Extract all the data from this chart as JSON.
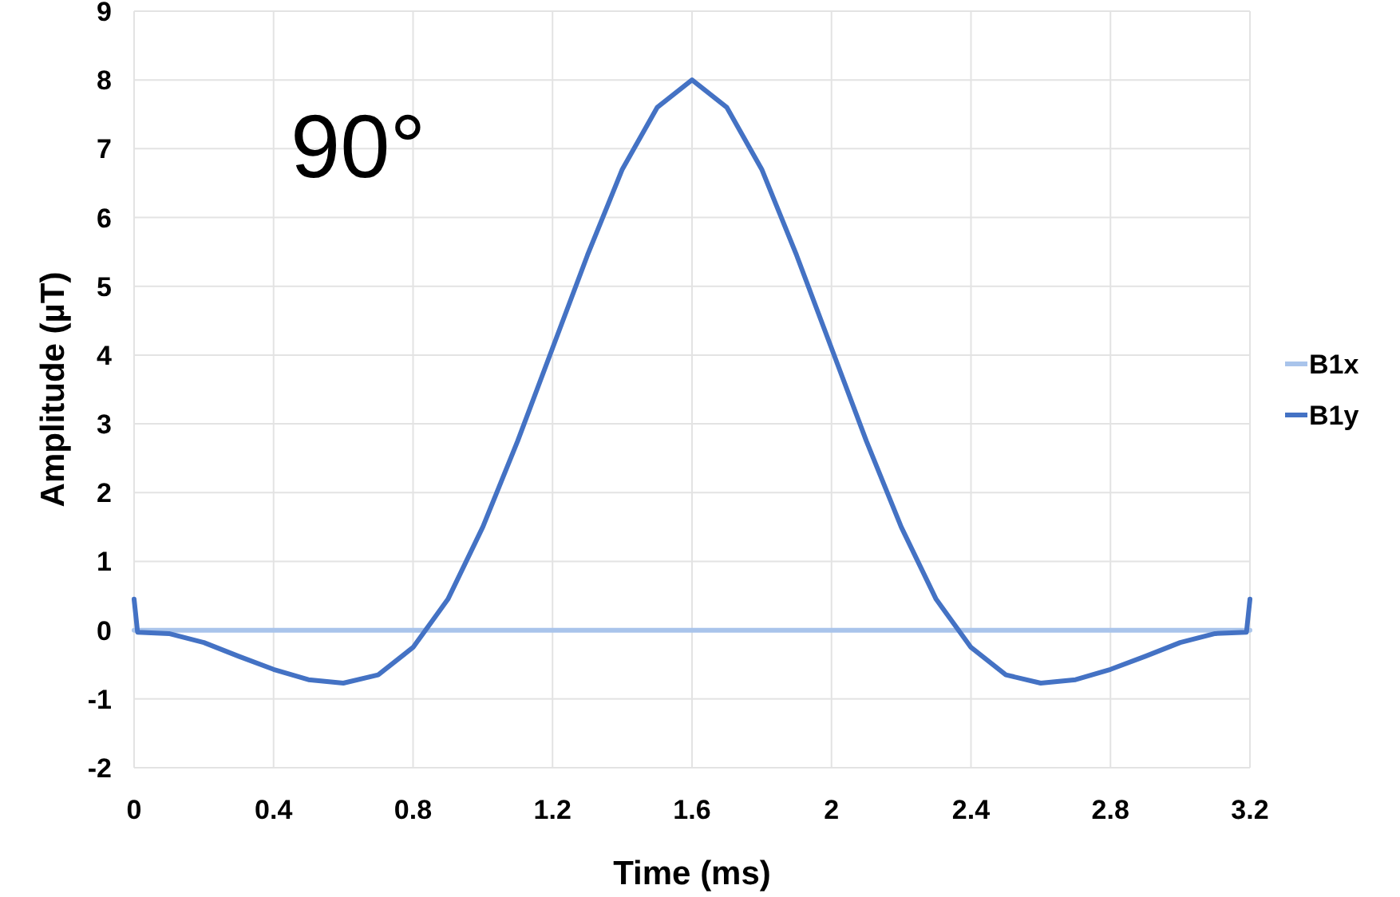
{
  "chart_data": {
    "type": "line",
    "xlabel": "Time (ms)",
    "ylabel": "Amplitude (µT)",
    "annotations": [
      "90°"
    ],
    "xlim": [
      0,
      3.2
    ],
    "xticks": [
      0,
      0.4,
      0.8,
      1.2,
      1.6,
      2,
      2.4,
      2.8,
      3.2
    ],
    "ylim": [
      -2,
      9
    ],
    "yticks": [
      -2,
      -1,
      0,
      1,
      2,
      3,
      4,
      5,
      6,
      7,
      8,
      9
    ],
    "grid": true,
    "legend": "right",
    "marker": "none",
    "line_style": "solid",
    "series": [
      {
        "name": "B1x",
        "color": "#a9c4eb",
        "x": [
          0,
          3.2
        ],
        "values": [
          0,
          0
        ]
      },
      {
        "name": "B1y",
        "color": "#4472c4",
        "x": [
          0,
          0.01,
          0.1,
          0.2,
          0.3,
          0.4,
          0.5,
          0.6,
          0.7,
          0.8,
          0.9,
          1.0,
          1.1,
          1.2,
          1.3,
          1.4,
          1.5,
          1.6,
          1.7,
          1.8,
          1.9,
          2.0,
          2.1,
          2.2,
          2.3,
          2.4,
          2.5,
          2.6,
          2.7,
          2.8,
          2.9,
          3.0,
          3.1,
          3.19,
          3.2
        ],
        "values": [
          0.45,
          -0.03,
          -0.05,
          -0.18,
          -0.38,
          -0.57,
          -0.72,
          -0.77,
          -0.65,
          -0.25,
          0.45,
          1.5,
          2.75,
          4.1,
          5.45,
          6.7,
          7.6,
          8.0,
          7.6,
          6.7,
          5.45,
          4.1,
          2.75,
          1.5,
          0.45,
          -0.25,
          -0.65,
          -0.77,
          -0.72,
          -0.57,
          -0.38,
          -0.18,
          -0.05,
          -0.03,
          0.45
        ]
      }
    ]
  }
}
